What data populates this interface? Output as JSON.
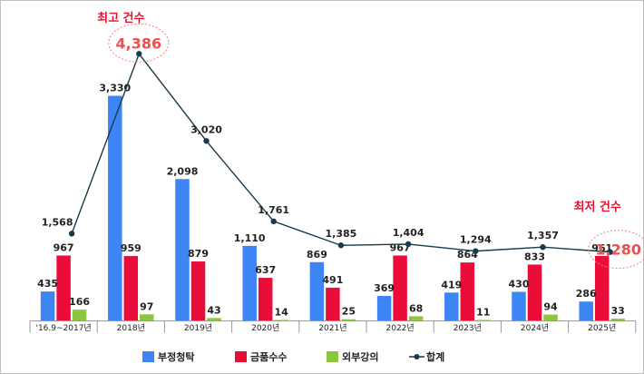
{
  "chart_data": {
    "type": "bar",
    "categories": [
      "'16.9~2017년",
      "2018년",
      "2019년",
      "2020년",
      "2021년",
      "2022년",
      "2023년",
      "2024년",
      "2025년"
    ],
    "series": [
      {
        "name": "부정청탁",
        "type": "bar",
        "color": "#3d85f5",
        "values": [
          435,
          3330,
          2098,
          1110,
          869,
          369,
          419,
          430,
          286
        ]
      },
      {
        "name": "금품수수",
        "type": "bar",
        "color": "#ea0d3a",
        "values": [
          967,
          959,
          879,
          637,
          491,
          967,
          864,
          833,
          961
        ]
      },
      {
        "name": "외부강의",
        "type": "bar",
        "color": "#8cc63f",
        "values": [
          166,
          97,
          43,
          14,
          25,
          68,
          11,
          94,
          33
        ]
      },
      {
        "name": "합계",
        "type": "line",
        "color": "#173a4a",
        "values": [
          1568,
          4386,
          3020,
          1761,
          1385,
          1404,
          1294,
          1357,
          1280
        ]
      }
    ],
    "annotations": [
      {
        "text": "최고 건수",
        "value_label": "4,386",
        "category_index": 1
      },
      {
        "text": "최저 건수",
        "value_label": "1,280",
        "category_index": 8
      }
    ],
    "legend_position": "bottom",
    "grid": false
  }
}
